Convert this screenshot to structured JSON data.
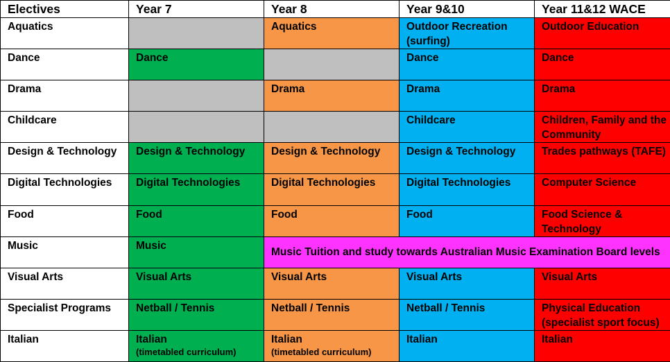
{
  "headers": [
    "Electives",
    "Year 7",
    "Year 8",
    "Year 9&10",
    "Year 11&12 WACE"
  ],
  "rows": [
    {
      "elective": "Aquatics",
      "y7": "",
      "y8": "Aquatics",
      "y910": "Outdoor Recreation (surfing)",
      "y1112": "Outdoor Education"
    },
    {
      "elective": "Dance",
      "y7": "Dance",
      "y8": "",
      "y910": "Dance",
      "y1112": "Dance"
    },
    {
      "elective": "Drama",
      "y7": "",
      "y8": "Drama",
      "y910": "Drama",
      "y1112": "Drama"
    },
    {
      "elective": "Childcare",
      "y7": "",
      "y8": "",
      "y910": "Childcare",
      "y1112": "Children, Family and the Community"
    },
    {
      "elective": "Design & Technology",
      "y7": "Design & Technology",
      "y8": "Design & Technology",
      "y910": "Design & Technology",
      "y1112": "Trades pathways (TAFE)"
    },
    {
      "elective": "Digital Technologies",
      "y7": "Digital Technologies",
      "y8": "Digital Technologies",
      "y910": "Digital Technologies",
      "y1112": "Computer Science"
    },
    {
      "elective": "Food",
      "y7": "Food",
      "y8": "Food",
      "y910": "Food",
      "y1112": "Food Science & Technology"
    },
    {
      "elective": "Music",
      "y7": "Music",
      "span": "Music Tuition and study towards Australian Music Examination Board levels"
    },
    {
      "elective": "Visual Arts",
      "y7": "Visual Arts",
      "y8": "Visual Arts",
      "y910": "Visual Arts",
      "y1112": "Visual Arts"
    },
    {
      "elective": "Specialist Programs",
      "y7": "Netball / Tennis",
      "y8": "Netball / Tennis",
      "y910": "Netball / Tennis",
      "y1112": "Physical Education (specialist sport focus)"
    },
    {
      "elective": "Italian",
      "y7": "Italian",
      "y7_sub": "(timetabled curriculum)",
      "y8": "Italian",
      "y8_sub": "(timetabled curriculum)",
      "y910": "Italian",
      "y1112": "Italian"
    }
  ],
  "colors": {
    "year7": "#00b050",
    "year8": "#f79646",
    "year910": "#00b0f0",
    "year1112": "#ff0000",
    "not_offered": "#bfbfbf",
    "music_span": "#ff33ff"
  }
}
